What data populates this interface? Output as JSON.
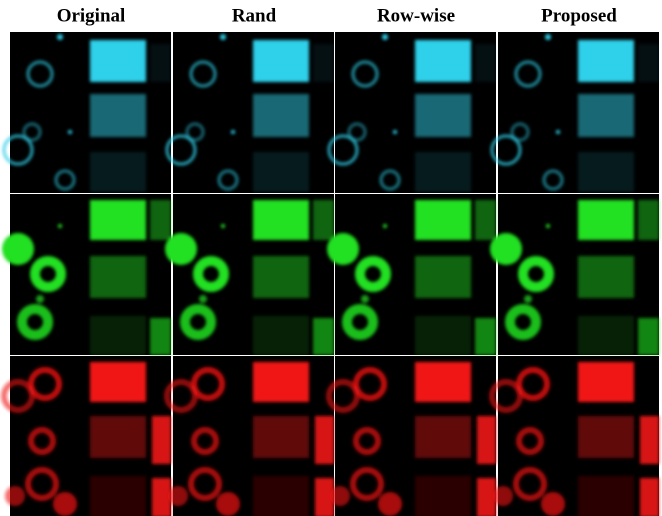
{
  "columns": [
    "Original",
    "Rand",
    "Row-wise",
    "Proposed"
  ]
}
